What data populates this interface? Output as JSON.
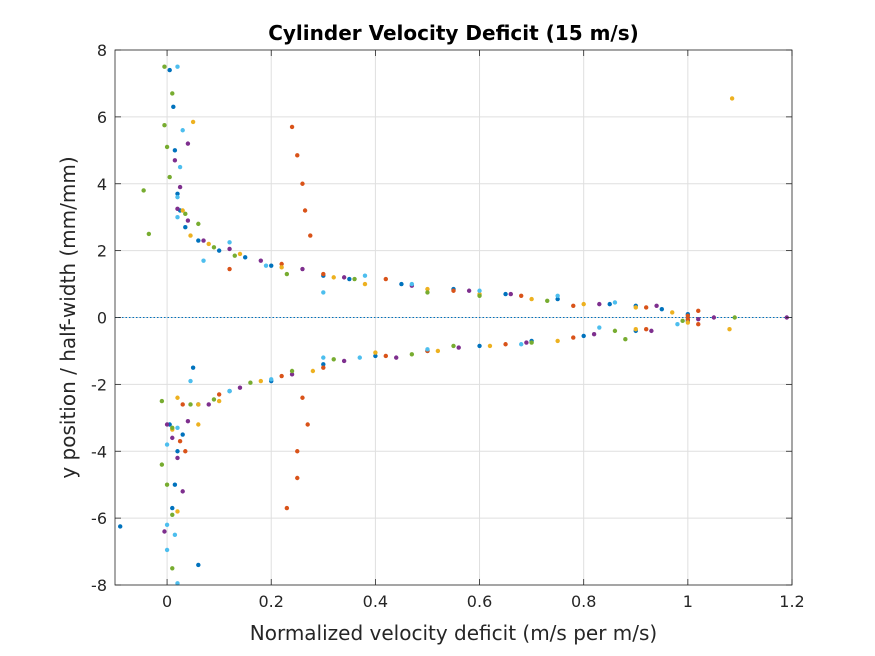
{
  "chart_data": {
    "type": "scatter",
    "title": "Cylinder Velocity Deficit (15 m/s)",
    "xlabel": "Normalized velocity deficit (m/s per m/s)",
    "ylabel": "y position / half-width (mm/mm)",
    "xlim": [
      -0.1,
      1.2
    ],
    "ylim": [
      -8,
      8
    ],
    "xticks": [
      0,
      0.2,
      0.4,
      0.6,
      0.8,
      1,
      1.2
    ],
    "xtick_labels": [
      "0",
      "0.2",
      "0.4",
      "0.6",
      "0.8",
      "1",
      "1.2"
    ],
    "yticks": [
      -8,
      -6,
      -4,
      -2,
      0,
      2,
      4,
      6,
      8
    ],
    "ytick_labels": [
      "-8",
      "-6",
      "-4",
      "-2",
      "0",
      "2",
      "4",
      "6",
      "8"
    ],
    "grid": true,
    "reference_line": {
      "y": 0,
      "style": "dotted",
      "color": "#0072BD"
    },
    "colors": [
      "#0072BD",
      "#D95319",
      "#EDB120",
      "#7E2F8E",
      "#77AC30",
      "#4DBEEE"
    ],
    "series": [
      {
        "color": "#0072BD",
        "points": [
          [
            0.005,
            7.4
          ],
          [
            0.012,
            6.3
          ],
          [
            0.015,
            5.0
          ],
          [
            0.02,
            3.7
          ],
          [
            0.025,
            3.2
          ],
          [
            0.035,
            2.7
          ],
          [
            0.06,
            2.3
          ],
          [
            0.1,
            2.0
          ],
          [
            0.15,
            1.8
          ],
          [
            0.2,
            1.55
          ],
          [
            0.3,
            1.25
          ],
          [
            0.35,
            1.15
          ],
          [
            0.45,
            1.0
          ],
          [
            0.55,
            0.85
          ],
          [
            0.65,
            0.7
          ],
          [
            0.75,
            0.55
          ],
          [
            0.85,
            0.4
          ],
          [
            0.9,
            0.35
          ],
          [
            0.95,
            0.25
          ],
          [
            1.0,
            0.1
          ],
          [
            1.0,
            -0.1
          ],
          [
            0.9,
            -0.4
          ],
          [
            0.8,
            -0.55
          ],
          [
            0.7,
            -0.7
          ],
          [
            0.6,
            -0.85
          ],
          [
            0.5,
            -1.0
          ],
          [
            0.4,
            -1.15
          ],
          [
            0.3,
            -1.4
          ],
          [
            0.2,
            -1.9
          ],
          [
            0.12,
            -2.2
          ],
          [
            0.06,
            -2.6
          ],
          [
            0.05,
            -1.5
          ],
          [
            0.03,
            -3.5
          ],
          [
            0.02,
            -4.0
          ],
          [
            0.015,
            -5.0
          ],
          [
            0.01,
            -5.7
          ],
          [
            0.06,
            -7.4
          ],
          [
            -0.09,
            -6.25
          ],
          [
            0.005,
            -3.2
          ]
        ]
      },
      {
        "color": "#D95319",
        "points": [
          [
            0.24,
            5.7
          ],
          [
            0.25,
            4.85
          ],
          [
            0.26,
            4.0
          ],
          [
            0.265,
            3.2
          ],
          [
            0.275,
            2.45
          ],
          [
            0.22,
            1.6
          ],
          [
            0.3,
            1.3
          ],
          [
            0.12,
            1.45
          ],
          [
            0.42,
            1.15
          ],
          [
            0.55,
            0.8
          ],
          [
            0.68,
            0.65
          ],
          [
            0.78,
            0.35
          ],
          [
            0.92,
            0.3
          ],
          [
            1.02,
            0.2
          ],
          [
            1.0,
            0.05
          ],
          [
            1.0,
            -0.05
          ],
          [
            1.02,
            -0.2
          ],
          [
            0.92,
            -0.35
          ],
          [
            0.78,
            -0.6
          ],
          [
            0.65,
            -0.8
          ],
          [
            0.5,
            -1.0
          ],
          [
            0.42,
            -1.15
          ],
          [
            0.3,
            -1.5
          ],
          [
            0.22,
            -1.75
          ],
          [
            0.26,
            -2.4
          ],
          [
            0.27,
            -3.2
          ],
          [
            0.25,
            -4.0
          ],
          [
            0.25,
            -4.8
          ],
          [
            0.23,
            -5.7
          ],
          [
            0.035,
            -4.0
          ],
          [
            0.025,
            -3.7
          ],
          [
            0.03,
            -2.6
          ],
          [
            0.1,
            -2.3
          ]
        ]
      },
      {
        "color": "#EDB120",
        "points": [
          [
            1.085,
            6.55
          ],
          [
            0.05,
            5.85
          ],
          [
            0.03,
            3.2
          ],
          [
            0.045,
            2.45
          ],
          [
            0.08,
            2.2
          ],
          [
            0.14,
            1.9
          ],
          [
            0.22,
            1.5
          ],
          [
            0.32,
            1.2
          ],
          [
            0.38,
            1.0
          ],
          [
            0.5,
            0.85
          ],
          [
            0.6,
            0.7
          ],
          [
            0.7,
            0.55
          ],
          [
            0.8,
            0.4
          ],
          [
            0.9,
            0.3
          ],
          [
            0.97,
            0.15
          ],
          [
            1.08,
            -0.35
          ],
          [
            1.0,
            -0.15
          ],
          [
            0.9,
            -0.35
          ],
          [
            0.75,
            -0.7
          ],
          [
            0.62,
            -0.85
          ],
          [
            0.52,
            -1.0
          ],
          [
            0.4,
            -1.05
          ],
          [
            0.28,
            -1.6
          ],
          [
            0.18,
            -1.9
          ],
          [
            0.1,
            -2.5
          ],
          [
            0.06,
            -2.6
          ],
          [
            0.02,
            -2.4
          ],
          [
            0.01,
            -3.35
          ],
          [
            0.02,
            -5.8
          ],
          [
            0.06,
            -3.2
          ]
        ]
      },
      {
        "color": "#7E2F8E",
        "points": [
          [
            1.19,
            0.0
          ],
          [
            0.04,
            5.2
          ],
          [
            0.015,
            4.7
          ],
          [
            0.025,
            3.9
          ],
          [
            0.02,
            3.25
          ],
          [
            0.04,
            2.9
          ],
          [
            0.07,
            2.3
          ],
          [
            0.12,
            2.05
          ],
          [
            0.18,
            1.7
          ],
          [
            0.26,
            1.45
          ],
          [
            0.34,
            1.2
          ],
          [
            0.47,
            0.95
          ],
          [
            0.58,
            0.8
          ],
          [
            0.66,
            0.7
          ],
          [
            0.83,
            0.4
          ],
          [
            0.94,
            0.35
          ],
          [
            1.05,
            0.0
          ],
          [
            1.02,
            -0.05
          ],
          [
            0.93,
            -0.4
          ],
          [
            0.82,
            -0.5
          ],
          [
            0.69,
            -0.75
          ],
          [
            0.56,
            -0.9
          ],
          [
            0.44,
            -1.2
          ],
          [
            0.34,
            -1.3
          ],
          [
            0.24,
            -1.7
          ],
          [
            0.14,
            -2.1
          ],
          [
            0.08,
            -2.6
          ],
          [
            0.04,
            -3.1
          ],
          [
            0.01,
            -3.6
          ],
          [
            0.02,
            -4.2
          ],
          [
            -0.005,
            -6.4
          ],
          [
            0.03,
            -5.2
          ],
          [
            0.0,
            -3.2
          ]
        ]
      },
      {
        "color": "#77AC30",
        "points": [
          [
            -0.005,
            7.5
          ],
          [
            0.01,
            6.7
          ],
          [
            -0.005,
            5.75
          ],
          [
            0.0,
            5.1
          ],
          [
            0.005,
            4.2
          ],
          [
            -0.045,
            3.8
          ],
          [
            -0.035,
            2.5
          ],
          [
            0.035,
            3.1
          ],
          [
            0.06,
            2.8
          ],
          [
            0.09,
            2.1
          ],
          [
            0.13,
            1.85
          ],
          [
            0.23,
            1.3
          ],
          [
            0.36,
            1.15
          ],
          [
            0.5,
            0.75
          ],
          [
            0.6,
            0.65
          ],
          [
            0.73,
            0.5
          ],
          [
            0.88,
            -0.65
          ],
          [
            1.09,
            0.0
          ],
          [
            0.99,
            -0.1
          ],
          [
            0.86,
            -0.4
          ],
          [
            0.7,
            -0.75
          ],
          [
            0.55,
            -0.85
          ],
          [
            0.47,
            -1.1
          ],
          [
            0.32,
            -1.25
          ],
          [
            0.24,
            -1.6
          ],
          [
            0.16,
            -1.95
          ],
          [
            0.09,
            -2.45
          ],
          [
            0.045,
            -2.6
          ],
          [
            -0.01,
            -2.5
          ],
          [
            -0.01,
            -4.4
          ],
          [
            0.0,
            -5.0
          ],
          [
            0.01,
            -5.9
          ],
          [
            0.01,
            -7.5
          ],
          [
            0.01,
            -3.3
          ]
        ]
      },
      {
        "color": "#4DBEEE",
        "points": [
          [
            0.02,
            7.5
          ],
          [
            0.03,
            5.6
          ],
          [
            0.025,
            4.5
          ],
          [
            0.02,
            3.6
          ],
          [
            0.02,
            3.0
          ],
          [
            0.07,
            1.7
          ],
          [
            0.12,
            2.25
          ],
          [
            0.19,
            1.55
          ],
          [
            0.3,
            0.75
          ],
          [
            0.38,
            1.25
          ],
          [
            0.47,
            1.0
          ],
          [
            0.6,
            0.8
          ],
          [
            0.75,
            0.65
          ],
          [
            0.86,
            0.45
          ],
          [
            0.98,
            -0.2
          ],
          [
            0.83,
            -0.3
          ],
          [
            0.68,
            -0.8
          ],
          [
            0.5,
            -0.95
          ],
          [
            0.37,
            -1.2
          ],
          [
            0.3,
            -1.2
          ],
          [
            0.2,
            -1.85
          ],
          [
            0.12,
            -2.2
          ],
          [
            0.045,
            -1.9
          ],
          [
            0.02,
            -3.3
          ],
          [
            0.0,
            -3.8
          ],
          [
            0.0,
            -6.95
          ],
          [
            0.02,
            -7.95
          ],
          [
            0.0,
            -6.2
          ],
          [
            0.015,
            -6.5
          ]
        ]
      }
    ]
  }
}
